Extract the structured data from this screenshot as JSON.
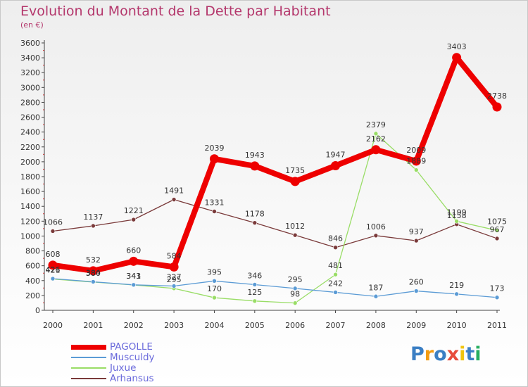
{
  "title": "Evolution du Montant de la Dette par Habitant",
  "subtitle": "(en €)",
  "logo": {
    "text": "Proxiti",
    "letters": [
      "P",
      "r",
      "o",
      "x",
      "i",
      "t",
      "i"
    ],
    "colors": [
      "#3b7fc4",
      "#f39c12",
      "#3b7fc4",
      "#e74c3c",
      "#f1c40f",
      "#3b7fc4",
      "#27ae60"
    ]
  },
  "chart_data": {
    "type": "line",
    "x": [
      2000,
      2001,
      2002,
      2003,
      2004,
      2005,
      2006,
      2007,
      2008,
      2009,
      2010,
      2011
    ],
    "ylim": [
      0,
      3600
    ],
    "yticks": [
      0,
      200,
      400,
      600,
      800,
      1000,
      1200,
      1400,
      1600,
      1800,
      2000,
      2200,
      2400,
      2600,
      2800,
      3000,
      3200,
      3400,
      3600
    ],
    "grid": false,
    "legend_position": "bottom-left",
    "series": [
      {
        "name": "PAGOLLE",
        "color": "#ee0000",
        "values": [
          608,
          532,
          660,
          584,
          2039,
          1943,
          1735,
          1947,
          2162,
          2009,
          3403,
          2738
        ]
      },
      {
        "name": "Musculdy",
        "color": "#5b9bd5",
        "values": [
          426,
          384,
          343,
          327,
          395,
          346,
          295,
          242,
          187,
          260,
          219,
          173
        ]
      },
      {
        "name": "Juxue",
        "color": "#99dd66",
        "values": [
          421,
          380,
          341,
          295,
          170,
          125,
          98,
          481,
          2379,
          1889,
          1199,
          1075
        ]
      },
      {
        "name": "Arhansus",
        "color": "#7a3a3a",
        "values": [
          1066,
          1137,
          1221,
          1491,
          1331,
          1178,
          1012,
          846,
          1006,
          937,
          1158,
          967
        ]
      }
    ]
  }
}
